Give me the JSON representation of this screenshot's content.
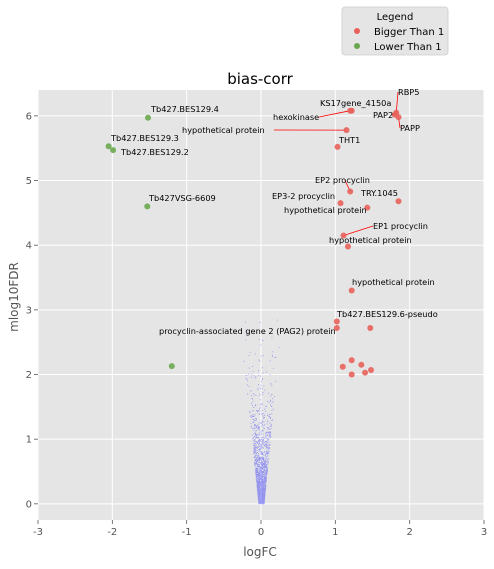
{
  "chart_data": {
    "type": "scatter",
    "title": "bias-corr",
    "xlabel": "logFC",
    "ylabel": "mlog10FDR",
    "xlim": [
      -3,
      3
    ],
    "ylim": [
      -0.25,
      6.4
    ],
    "xticks": [
      "-3",
      "-2",
      "-1",
      "0",
      "1",
      "2",
      "3"
    ],
    "yticks": [
      "0",
      "1",
      "2",
      "3",
      "4",
      "5",
      "6"
    ],
    "grid": true,
    "legend": {
      "title": "Legend",
      "placement": "top-right outside",
      "entries": [
        "Bigger Than 1",
        "Lower Than 1"
      ]
    },
    "background_cloud": {
      "description_color": "#0000ff",
      "shape": "volcano"
    },
    "series": [
      {
        "name": "Bigger Than 1",
        "color": "#e8605a",
        "points": [
          {
            "x": 1.82,
            "y": 6.05,
            "label": "RBP5"
          },
          {
            "x": 1.8,
            "y": 6.02,
            "label": "PAP2"
          },
          {
            "x": 1.85,
            "y": 5.98,
            "label": "PAPP"
          },
          {
            "x": 1.22,
            "y": 6.08,
            "label": "KS17gene_4150a"
          },
          {
            "x": 1.2,
            "y": 6.08,
            "label": "hexokinase"
          },
          {
            "x": 1.15,
            "y": 5.78,
            "label": "hypothetical protein"
          },
          {
            "x": 1.03,
            "y": 5.52,
            "label": "THT1"
          },
          {
            "x": 1.2,
            "y": 4.83,
            "label": "EP2 procyclin"
          },
          {
            "x": 1.07,
            "y": 4.65,
            "label": "EP3-2 procyclin"
          },
          {
            "x": 1.43,
            "y": 4.58,
            "label": "hypothetical protein"
          },
          {
            "x": 1.85,
            "y": 4.68,
            "label": "TRY.1045"
          },
          {
            "x": 1.11,
            "y": 4.15,
            "label": "EP1 procyclin"
          },
          {
            "x": 1.17,
            "y": 3.98,
            "label": "hypothetical protein"
          },
          {
            "x": 1.22,
            "y": 3.3,
            "label": "hypothetical protein"
          },
          {
            "x": 1.02,
            "y": 2.82,
            "label": "Tb427.BES129.6-pseudo"
          },
          {
            "x": 1.02,
            "y": 2.72,
            "label": "procyclin-associated gene 2 (PAG2) protein"
          },
          {
            "x": 1.47,
            "y": 2.72,
            "label": ""
          },
          {
            "x": 1.22,
            "y": 2.22,
            "label": ""
          },
          {
            "x": 1.35,
            "y": 2.15,
            "label": ""
          },
          {
            "x": 1.1,
            "y": 2.12,
            "label": ""
          },
          {
            "x": 1.48,
            "y": 2.07,
            "label": ""
          },
          {
            "x": 1.4,
            "y": 2.03,
            "label": ""
          },
          {
            "x": 1.22,
            "y": 2.0,
            "label": ""
          }
        ]
      },
      {
        "name": "Lower Than 1",
        "color": "#6aa84f",
        "points": [
          {
            "x": -1.52,
            "y": 5.97,
            "label": "Tb427.BES129.4"
          },
          {
            "x": -2.05,
            "y": 5.53,
            "label": "Tb427.BES129.3"
          },
          {
            "x": -1.99,
            "y": 5.47,
            "label": "Tb427.BES129.2"
          },
          {
            "x": -1.53,
            "y": 4.6,
            "label": "Tb427VSG-6609"
          },
          {
            "x": -1.2,
            "y": 2.13,
            "label": ""
          }
        ]
      }
    ]
  }
}
